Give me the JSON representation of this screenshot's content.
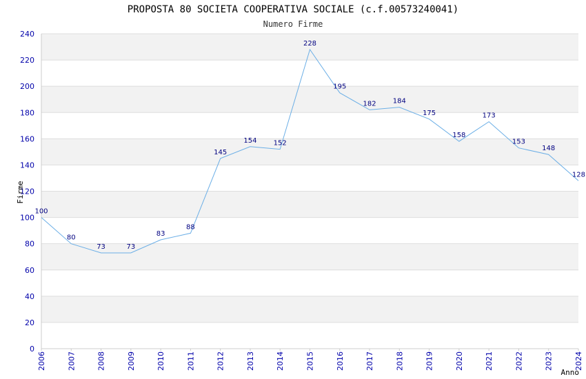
{
  "chart_data": {
    "type": "line",
    "title": "PROPOSTA 80 SOCIETA COOPERATIVA SOCIALE (c.f.00573240041)",
    "subtitle": "Numero Firme",
    "xlabel": "Anno",
    "ylabel": "Firme",
    "x": [
      "2006",
      "2007",
      "2008",
      "2009",
      "2010",
      "2011",
      "2012",
      "2013",
      "2014",
      "2015",
      "2016",
      "2017",
      "2018",
      "2019",
      "2020",
      "2021",
      "2022",
      "2023",
      "2024"
    ],
    "values": [
      100,
      80,
      73,
      73,
      83,
      88,
      145,
      154,
      152,
      228,
      195,
      182,
      184,
      175,
      158,
      173,
      153,
      148,
      128
    ],
    "ylim": [
      0,
      240
    ],
    "yticks": [
      0,
      20,
      40,
      60,
      80,
      100,
      120,
      140,
      160,
      180,
      200,
      220,
      240
    ],
    "grid": true,
    "colors": {
      "line": "#6aaee6",
      "band": "#f2f2f2",
      "grid": "#dddddd",
      "tick": "#0000aa",
      "data_label": "#000080"
    }
  }
}
